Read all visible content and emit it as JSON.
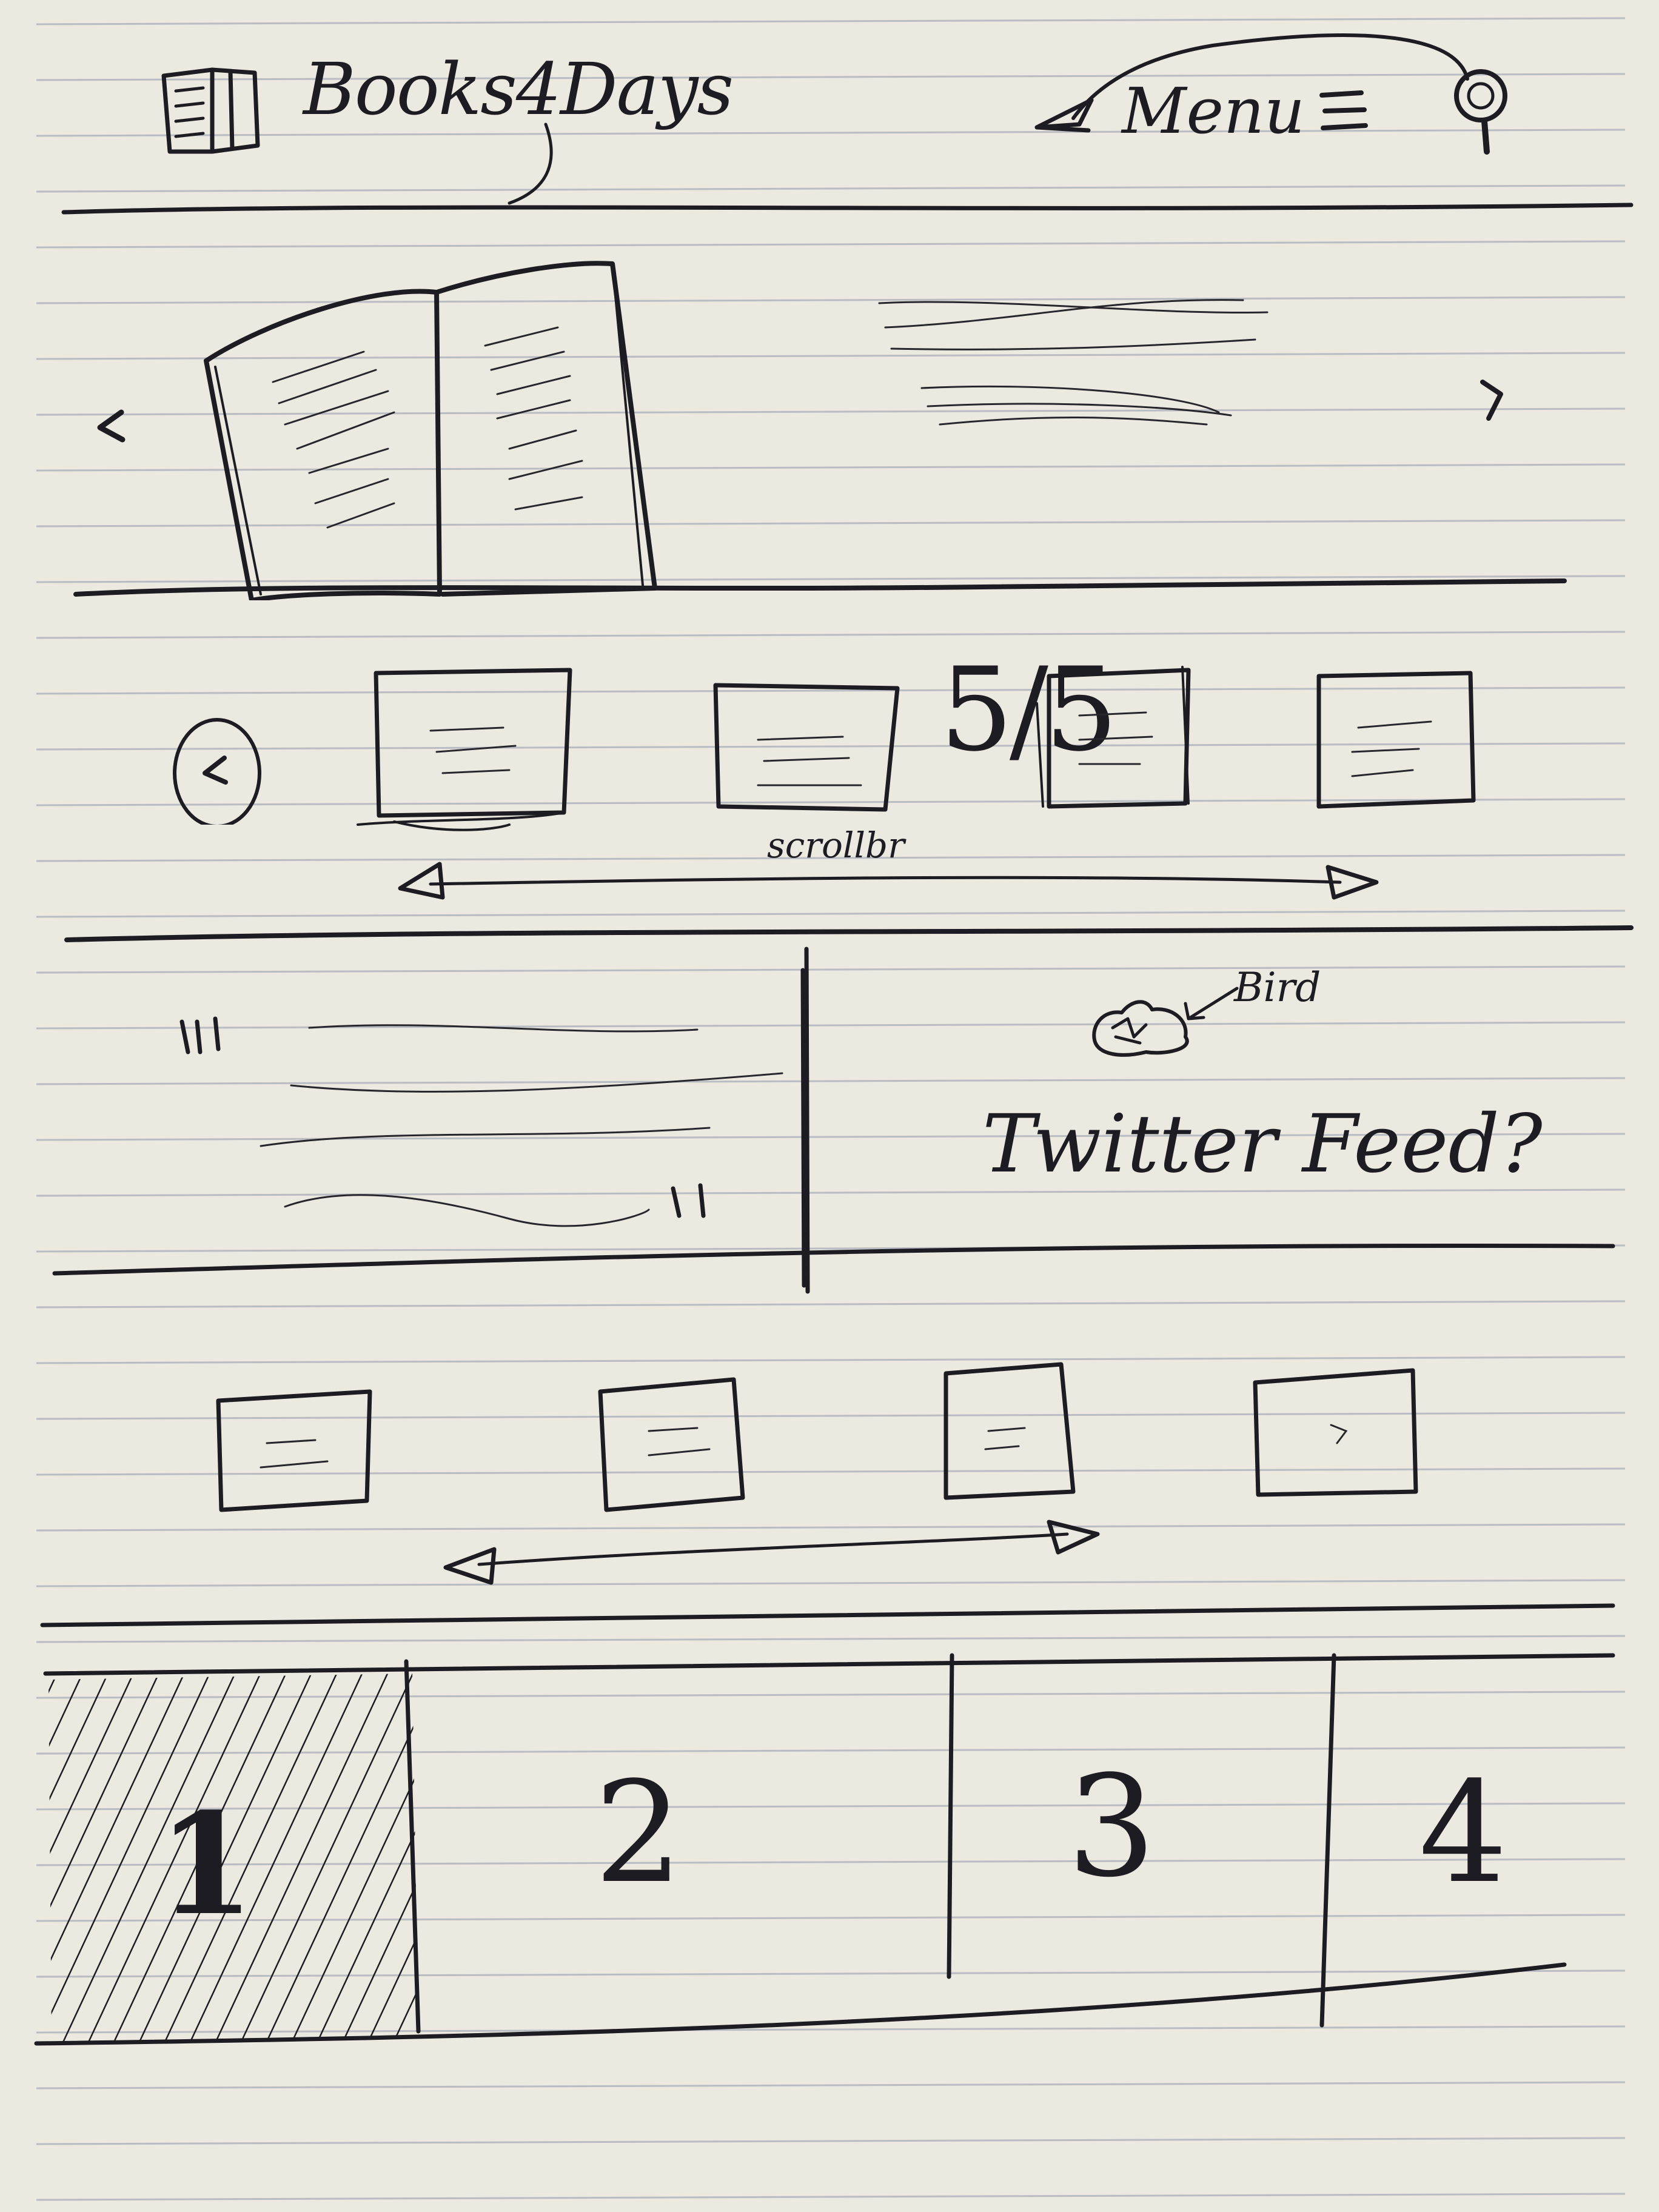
{
  "header": {
    "brand_title": "Books4Days",
    "menu_label": "Menu",
    "icons": [
      "book-logo-icon",
      "arrow-left-icon",
      "hamburger-icon",
      "search-icon"
    ]
  },
  "hero": {
    "rating": "5/5",
    "icons": [
      "chevron-left-icon",
      "chevron-right-icon"
    ]
  },
  "carousel": {
    "scrollbar_label": "scrollbr"
  },
  "social": {
    "bird_label": "Bird",
    "feed_label": "Twitter Feed?"
  },
  "tabs": [
    {
      "label": "1",
      "active": true
    },
    {
      "label": "2",
      "active": false
    },
    {
      "label": "3",
      "active": false
    },
    {
      "label": "4",
      "active": false
    }
  ],
  "colors": {
    "ink": "#1c1c22",
    "paper": "#ece9e0",
    "rule": "#b9bcc3"
  }
}
